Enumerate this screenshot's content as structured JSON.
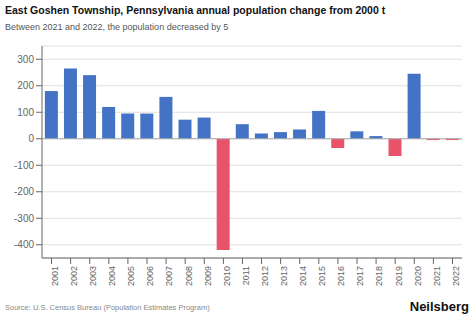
{
  "chart_data": {
    "type": "bar",
    "title": "East Goshen Township, Pennsylvania annual population change from 2000 t",
    "subtitle": "Between 2021 and 2022, the population decreased by 5",
    "annotations": [
      "Source: U.S. Census Bureau (Population Estimates Program)",
      "Neilsberg"
    ],
    "categories": [
      "2001",
      "2002",
      "2003",
      "2004",
      "2005",
      "2006",
      "2007",
      "2008",
      "2009",
      "2010",
      "2011",
      "2012",
      "2013",
      "2014",
      "2015",
      "2016",
      "2017",
      "2018",
      "2019",
      "2020",
      "2021",
      "2022"
    ],
    "values": [
      180,
      265,
      240,
      120,
      95,
      95,
      158,
      72,
      80,
      -420,
      55,
      20,
      25,
      35,
      105,
      -35,
      28,
      10,
      -65,
      245,
      -5,
      -5
    ],
    "colors": [
      "#4472C4",
      "#4472C4",
      "#4472C4",
      "#4472C4",
      "#4472C4",
      "#4472C4",
      "#4472C4",
      "#4472C4",
      "#4472C4",
      "#E8536A",
      "#4472C4",
      "#4472C4",
      "#4472C4",
      "#4472C4",
      "#4472C4",
      "#E8536A",
      "#4472C4",
      "#4472C4",
      "#E8536A",
      "#4472C4",
      "#E8536A",
      "#E8536A"
    ],
    "ylim": [
      -450,
      350
    ],
    "yticks": [
      -400,
      -300,
      -200,
      -100,
      0,
      100,
      200,
      300
    ],
    "grid": true
  }
}
